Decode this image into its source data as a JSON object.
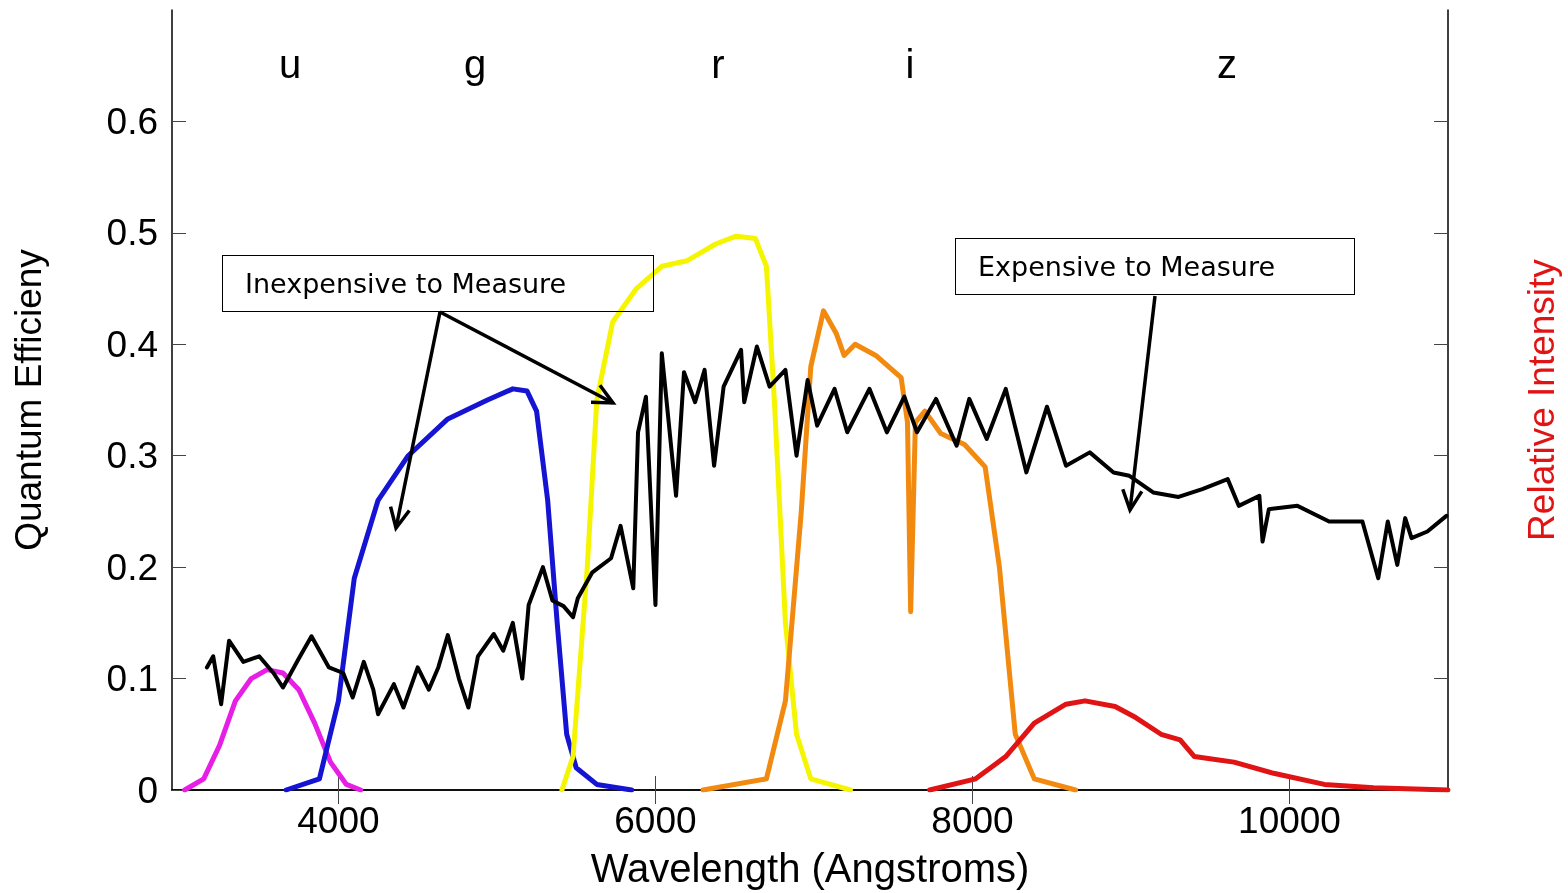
{
  "chart_data": {
    "type": "line",
    "xlabel": "Wavelength (Angstroms)",
    "ylabel": "Quantum Efficieny",
    "y2label": "Relative Intensity",
    "xlim": [
      2950,
      11000
    ],
    "xticks": [
      4000,
      6000,
      8000,
      10000
    ],
    "ylim": [
      0,
      0.7
    ],
    "yticks": [
      0,
      0.1,
      0.2,
      0.3,
      0.4,
      0.5,
      0.6
    ],
    "grid": false,
    "marker": "none",
    "line_style": "solid",
    "annotations": [
      "u",
      "g",
      "r",
      "i",
      "z",
      "Inexpensive to Measure",
      "Expensive to Measure"
    ],
    "series": [
      {
        "color": "#e61ee6",
        "x": [
          3030,
          3150,
          3250,
          3350,
          3450,
          3550,
          3650,
          3750,
          3850,
          3950,
          4050,
          4140
        ],
        "values": [
          0,
          0.01,
          0.04,
          0.08,
          0.1,
          0.108,
          0.105,
          0.09,
          0.06,
          0.025,
          0.005,
          0
        ]
      },
      {
        "color": "#1414d2",
        "x": [
          3670,
          3880,
          4000,
          4100,
          4250,
          4440,
          4690,
          4940,
          5100,
          5190,
          5250,
          5320,
          5380,
          5440,
          5500,
          5630,
          5850
        ],
        "values": [
          0,
          0.01,
          0.08,
          0.19,
          0.26,
          0.3,
          0.333,
          0.35,
          0.36,
          0.358,
          0.34,
          0.26,
          0.15,
          0.05,
          0.02,
          0.005,
          0
        ]
      },
      {
        "color": "#f5f500",
        "x": [
          5410,
          5480,
          5570,
          5630,
          5730,
          5880,
          6040,
          6200,
          6380,
          6510,
          6630,
          6700,
          6750,
          6820,
          6890,
          6980,
          7230
        ],
        "values": [
          0,
          0.03,
          0.2,
          0.35,
          0.42,
          0.45,
          0.47,
          0.475,
          0.49,
          0.497,
          0.495,
          0.47,
          0.35,
          0.15,
          0.05,
          0.01,
          0
        ]
      },
      {
        "color": "#f28a10",
        "x": [
          6300,
          6700,
          6820,
          6920,
          6980,
          7060,
          7140,
          7190,
          7260,
          7390,
          7550,
          7590,
          7610,
          7640,
          7700,
          7800,
          7950,
          8080,
          8170,
          8270,
          8390,
          8650
        ],
        "values": [
          0,
          0.01,
          0.08,
          0.25,
          0.38,
          0.43,
          0.41,
          0.39,
          0.4,
          0.39,
          0.37,
          0.33,
          0.16,
          0.33,
          0.34,
          0.32,
          0.31,
          0.29,
          0.2,
          0.05,
          0.01,
          0
        ]
      },
      {
        "color": "#e01414",
        "x": [
          7730,
          8020,
          8210,
          8390,
          8590,
          8710,
          8900,
          9030,
          9190,
          9310,
          9400,
          9650,
          9900,
          10220,
          10530,
          11000
        ],
        "values": [
          0,
          0.01,
          0.03,
          0.06,
          0.077,
          0.08,
          0.075,
          0.065,
          0.05,
          0.045,
          0.03,
          0.025,
          0.015,
          0.005,
          0.002,
          0
        ]
      },
      {
        "color": "#000000",
        "x": [
          3170,
          3210,
          3260,
          3310,
          3400,
          3500,
          3590,
          3650,
          3750,
          3830,
          3940,
          4030,
          4090,
          4160,
          4220,
          4250,
          4350,
          4410,
          4500,
          4570,
          4630,
          4690,
          4760,
          4820,
          4880,
          4980,
          5040,
          5100,
          5160,
          5200,
          5290,
          5350,
          5420,
          5480,
          5510,
          5600,
          5720,
          5780,
          5860,
          5890,
          5940,
          6000,
          6040,
          6130,
          6180,
          6250,
          6310,
          6370,
          6430,
          6540,
          6560,
          6640,
          6720,
          6820,
          6890,
          6960,
          7020,
          7130,
          7210,
          7350,
          7460,
          7570,
          7650,
          7770,
          7900,
          7980,
          8090,
          8210,
          8340,
          8470,
          8590,
          8740,
          8890,
          8990,
          9140,
          9300,
          9450,
          9610,
          9680,
          9810,
          9830,
          9870,
          10050,
          10250,
          10460,
          10560,
          10620,
          10680,
          10730,
          10770,
          10870,
          10990
        ],
        "values": [
          0.11,
          0.12,
          0.077,
          0.134,
          0.115,
          0.12,
          0.105,
          0.092,
          0.118,
          0.138,
          0.11,
          0.105,
          0.083,
          0.115,
          0.09,
          0.068,
          0.095,
          0.074,
          0.11,
          0.09,
          0.11,
          0.139,
          0.1,
          0.074,
          0.12,
          0.14,
          0.125,
          0.15,
          0.1,
          0.166,
          0.2,
          0.17,
          0.165,
          0.155,
          0.172,
          0.195,
          0.208,
          0.237,
          0.181,
          0.321,
          0.353,
          0.166,
          0.392,
          0.264,
          0.375,
          0.348,
          0.377,
          0.291,
          0.362,
          0.395,
          0.348,
          0.398,
          0.362,
          0.377,
          0.3,
          0.368,
          0.327,
          0.36,
          0.321,
          0.36,
          0.321,
          0.353,
          0.321,
          0.351,
          0.309,
          0.351,
          0.315,
          0.36,
          0.285,
          0.344,
          0.291,
          0.303,
          0.285,
          0.282,
          0.267,
          0.263,
          0.27,
          0.279,
          0.255,
          0.264,
          0.223,
          0.252,
          0.255,
          0.241,
          0.241,
          0.19,
          0.241,
          0.202,
          0.244,
          0.226,
          0.232,
          0.246
        ]
      }
    ]
  }
}
